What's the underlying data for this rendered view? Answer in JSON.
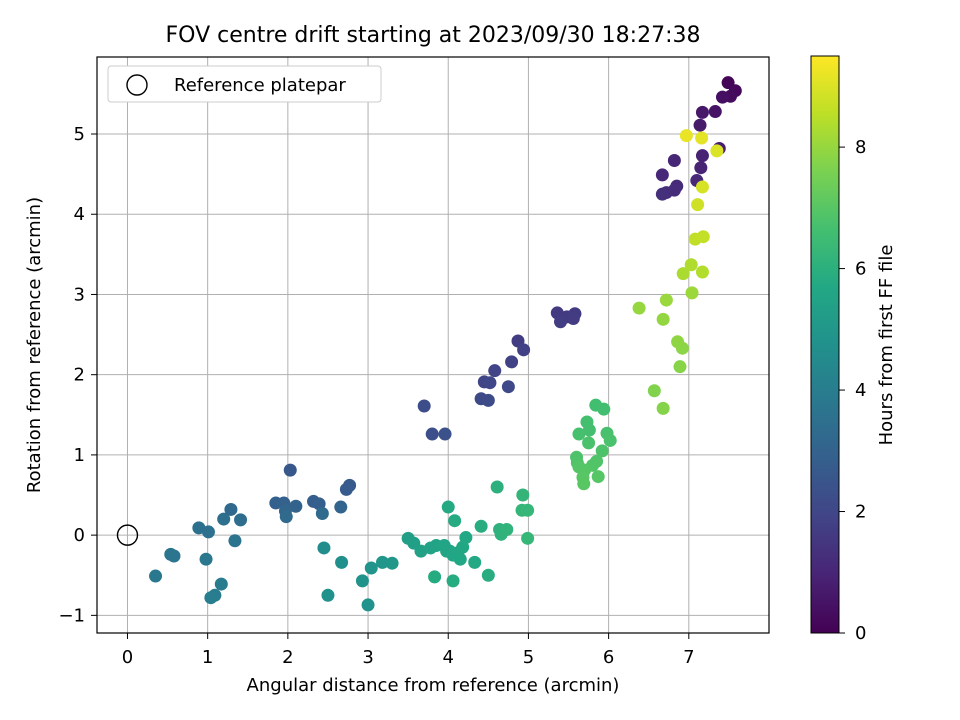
{
  "chart_data": {
    "type": "scatter",
    "title": "FOV centre drift starting at 2023/09/30 18:27:38",
    "xlabel": "Angular distance from reference (arcmin)",
    "ylabel": "Rotation from reference (arcmin)",
    "xlim": [
      -0.38,
      8.0
    ],
    "ylim": [
      -1.22,
      5.96
    ],
    "xticks": [
      0,
      1,
      2,
      3,
      4,
      5,
      6,
      7
    ],
    "yticks": [
      -1,
      0,
      1,
      2,
      3,
      4,
      5
    ],
    "grid": true,
    "legend": {
      "entries": [
        "Reference platepar"
      ],
      "position": "top-left"
    },
    "reference_point": {
      "x": 0,
      "y": 0
    },
    "colorbar": {
      "label": "Hours from first FF file",
      "colormap": "viridis",
      "range": [
        0,
        9.5
      ],
      "ticks": [
        0,
        2,
        4,
        6,
        8
      ]
    },
    "points": [
      {
        "x": 7.49,
        "y": 5.64,
        "h": 0.1
      },
      {
        "x": 7.58,
        "y": 5.54,
        "h": 0.2
      },
      {
        "x": 7.52,
        "y": 5.47,
        "h": 0.3
      },
      {
        "x": 7.42,
        "y": 5.46,
        "h": 0.4
      },
      {
        "x": 7.33,
        "y": 5.28,
        "h": 0.5
      },
      {
        "x": 7.17,
        "y": 5.27,
        "h": 0.6
      },
      {
        "x": 7.14,
        "y": 5.11,
        "h": 0.7
      },
      {
        "x": 7.38,
        "y": 4.82,
        "h": 0.8
      },
      {
        "x": 7.17,
        "y": 4.73,
        "h": 0.9
      },
      {
        "x": 7.15,
        "y": 4.58,
        "h": 0.95
      },
      {
        "x": 6.82,
        "y": 4.67,
        "h": 1.0
      },
      {
        "x": 6.67,
        "y": 4.49,
        "h": 1.05
      },
      {
        "x": 7.1,
        "y": 4.42,
        "h": 1.1
      },
      {
        "x": 6.85,
        "y": 4.35,
        "h": 1.15
      },
      {
        "x": 6.82,
        "y": 4.3,
        "h": 1.2
      },
      {
        "x": 6.72,
        "y": 4.27,
        "h": 1.25
      },
      {
        "x": 6.67,
        "y": 4.25,
        "h": 1.3
      },
      {
        "x": 5.36,
        "y": 2.77,
        "h": 1.6
      },
      {
        "x": 5.58,
        "y": 2.76,
        "h": 1.62
      },
      {
        "x": 5.48,
        "y": 2.72,
        "h": 1.64
      },
      {
        "x": 5.56,
        "y": 2.7,
        "h": 1.66
      },
      {
        "x": 5.4,
        "y": 2.66,
        "h": 1.68
      },
      {
        "x": 4.87,
        "y": 2.42,
        "h": 1.7
      },
      {
        "x": 4.94,
        "y": 2.31,
        "h": 1.8
      },
      {
        "x": 4.79,
        "y": 2.16,
        "h": 1.85
      },
      {
        "x": 4.58,
        "y": 2.05,
        "h": 1.9
      },
      {
        "x": 4.45,
        "y": 1.91,
        "h": 1.95
      },
      {
        "x": 4.52,
        "y": 1.9,
        "h": 2.0
      },
      {
        "x": 4.75,
        "y": 1.85,
        "h": 2.05
      },
      {
        "x": 4.41,
        "y": 1.7,
        "h": 2.1
      },
      {
        "x": 4.5,
        "y": 1.68,
        "h": 2.15
      },
      {
        "x": 3.7,
        "y": 1.61,
        "h": 2.2
      },
      {
        "x": 3.8,
        "y": 1.26,
        "h": 2.3
      },
      {
        "x": 3.96,
        "y": 1.26,
        "h": 2.35
      },
      {
        "x": 2.03,
        "y": 0.81,
        "h": 2.6
      },
      {
        "x": 2.77,
        "y": 0.62,
        "h": 2.65
      },
      {
        "x": 2.73,
        "y": 0.57,
        "h": 2.7
      },
      {
        "x": 2.32,
        "y": 0.42,
        "h": 2.8
      },
      {
        "x": 2.39,
        "y": 0.39,
        "h": 2.85
      },
      {
        "x": 1.85,
        "y": 0.4,
        "h": 2.9
      },
      {
        "x": 1.95,
        "y": 0.4,
        "h": 2.95
      },
      {
        "x": 2.1,
        "y": 0.36,
        "h": 3.0
      },
      {
        "x": 2.66,
        "y": 0.35,
        "h": 3.05
      },
      {
        "x": 1.97,
        "y": 0.3,
        "h": 3.1
      },
      {
        "x": 1.29,
        "y": 0.32,
        "h": 3.2
      },
      {
        "x": 2.43,
        "y": 0.27,
        "h": 3.25
      },
      {
        "x": 1.98,
        "y": 0.23,
        "h": 3.3
      },
      {
        "x": 1.41,
        "y": 0.19,
        "h": 3.4
      },
      {
        "x": 1.2,
        "y": 0.2,
        "h": 3.45
      },
      {
        "x": 0.89,
        "y": 0.09,
        "h": 3.5
      },
      {
        "x": 1.01,
        "y": 0.04,
        "h": 3.55
      },
      {
        "x": 1.34,
        "y": -0.07,
        "h": 3.6
      },
      {
        "x": 0.54,
        "y": -0.24,
        "h": 3.65
      },
      {
        "x": 0.58,
        "y": -0.26,
        "h": 3.7
      },
      {
        "x": 0.98,
        "y": -0.3,
        "h": 3.75
      },
      {
        "x": 0.35,
        "y": -0.51,
        "h": 3.8
      },
      {
        "x": 1.17,
        "y": -0.61,
        "h": 3.9
      },
      {
        "x": 1.09,
        "y": -0.75,
        "h": 3.95
      },
      {
        "x": 1.04,
        "y": -0.78,
        "h": 4.0
      },
      {
        "x": 2.45,
        "y": -0.16,
        "h": 4.6
      },
      {
        "x": 2.67,
        "y": -0.34,
        "h": 4.7
      },
      {
        "x": 2.5,
        "y": -0.75,
        "h": 4.75
      },
      {
        "x": 3.0,
        "y": -0.87,
        "h": 4.8
      },
      {
        "x": 2.93,
        "y": -0.57,
        "h": 4.85
      },
      {
        "x": 3.04,
        "y": -0.41,
        "h": 4.9
      },
      {
        "x": 3.18,
        "y": -0.34,
        "h": 4.95
      },
      {
        "x": 3.3,
        "y": -0.35,
        "h": 5.0
      },
      {
        "x": 3.5,
        "y": -0.04,
        "h": 5.3
      },
      {
        "x": 3.57,
        "y": -0.1,
        "h": 5.35
      },
      {
        "x": 3.66,
        "y": -0.2,
        "h": 5.4
      },
      {
        "x": 3.78,
        "y": -0.16,
        "h": 5.45
      },
      {
        "x": 3.85,
        "y": -0.13,
        "h": 5.5
      },
      {
        "x": 3.95,
        "y": -0.13,
        "h": 5.52
      },
      {
        "x": 3.98,
        "y": -0.2,
        "h": 5.55
      },
      {
        "x": 4.02,
        "y": -0.2,
        "h": 5.57
      },
      {
        "x": 4.06,
        "y": -0.25,
        "h": 5.6
      },
      {
        "x": 4.12,
        "y": -0.22,
        "h": 5.62
      },
      {
        "x": 4.18,
        "y": -0.15,
        "h": 5.65
      },
      {
        "x": 4.15,
        "y": -0.3,
        "h": 5.67
      },
      {
        "x": 4.22,
        "y": -0.03,
        "h": 5.7
      },
      {
        "x": 4.33,
        "y": -0.34,
        "h": 5.72
      },
      {
        "x": 4.0,
        "y": 0.35,
        "h": 5.75
      },
      {
        "x": 4.08,
        "y": 0.18,
        "h": 5.8
      },
      {
        "x": 3.83,
        "y": -0.52,
        "h": 5.82
      },
      {
        "x": 4.06,
        "y": -0.57,
        "h": 5.85
      },
      {
        "x": 4.5,
        "y": -0.5,
        "h": 5.88
      },
      {
        "x": 4.41,
        "y": 0.11,
        "h": 5.9
      },
      {
        "x": 4.61,
        "y": 0.6,
        "h": 6.0
      },
      {
        "x": 4.64,
        "y": 0.07,
        "h": 6.05
      },
      {
        "x": 4.66,
        "y": 0.01,
        "h": 6.1
      },
      {
        "x": 4.73,
        "y": 0.07,
        "h": 6.15
      },
      {
        "x": 4.93,
        "y": 0.5,
        "h": 6.2
      },
      {
        "x": 4.92,
        "y": 0.31,
        "h": 6.25
      },
      {
        "x": 4.99,
        "y": 0.31,
        "h": 6.27
      },
      {
        "x": 4.99,
        "y": -0.04,
        "h": 6.3
      },
      {
        "x": 5.84,
        "y": 1.62,
        "h": 6.6
      },
      {
        "x": 5.94,
        "y": 1.57,
        "h": 6.62
      },
      {
        "x": 5.73,
        "y": 1.41,
        "h": 6.65
      },
      {
        "x": 5.76,
        "y": 1.31,
        "h": 6.67
      },
      {
        "x": 5.63,
        "y": 1.26,
        "h": 6.7
      },
      {
        "x": 5.98,
        "y": 1.27,
        "h": 6.72
      },
      {
        "x": 6.02,
        "y": 1.18,
        "h": 6.75
      },
      {
        "x": 5.75,
        "y": 1.15,
        "h": 6.77
      },
      {
        "x": 5.92,
        "y": 1.05,
        "h": 6.8
      },
      {
        "x": 5.6,
        "y": 0.97,
        "h": 6.82
      },
      {
        "x": 5.61,
        "y": 0.9,
        "h": 6.85
      },
      {
        "x": 5.85,
        "y": 0.92,
        "h": 6.87
      },
      {
        "x": 5.8,
        "y": 0.87,
        "h": 6.9
      },
      {
        "x": 5.63,
        "y": 0.85,
        "h": 6.92
      },
      {
        "x": 5.7,
        "y": 0.81,
        "h": 6.95
      },
      {
        "x": 5.87,
        "y": 0.73,
        "h": 6.97
      },
      {
        "x": 5.68,
        "y": 0.72,
        "h": 7.0
      },
      {
        "x": 5.69,
        "y": 0.64,
        "h": 7.02
      },
      {
        "x": 6.57,
        "y": 1.8,
        "h": 7.7
      },
      {
        "x": 6.68,
        "y": 1.58,
        "h": 7.75
      },
      {
        "x": 6.89,
        "y": 2.1,
        "h": 7.8
      },
      {
        "x": 6.92,
        "y": 2.33,
        "h": 7.85
      },
      {
        "x": 6.86,
        "y": 2.41,
        "h": 7.9
      },
      {
        "x": 6.68,
        "y": 2.69,
        "h": 7.95
      },
      {
        "x": 6.38,
        "y": 2.83,
        "h": 8.0
      },
      {
        "x": 6.72,
        "y": 2.93,
        "h": 8.05
      },
      {
        "x": 7.04,
        "y": 3.02,
        "h": 8.1
      },
      {
        "x": 6.93,
        "y": 3.26,
        "h": 8.3
      },
      {
        "x": 7.03,
        "y": 3.37,
        "h": 8.35
      },
      {
        "x": 7.17,
        "y": 3.28,
        "h": 8.4
      },
      {
        "x": 7.08,
        "y": 3.69,
        "h": 8.6
      },
      {
        "x": 7.18,
        "y": 3.72,
        "h": 8.65
      },
      {
        "x": 7.11,
        "y": 4.12,
        "h": 8.8
      },
      {
        "x": 7.17,
        "y": 4.34,
        "h": 8.9
      },
      {
        "x": 7.35,
        "y": 4.79,
        "h": 9.0
      },
      {
        "x": 7.16,
        "y": 4.95,
        "h": 9.1
      },
      {
        "x": 6.97,
        "y": 4.98,
        "h": 9.2
      }
    ]
  }
}
